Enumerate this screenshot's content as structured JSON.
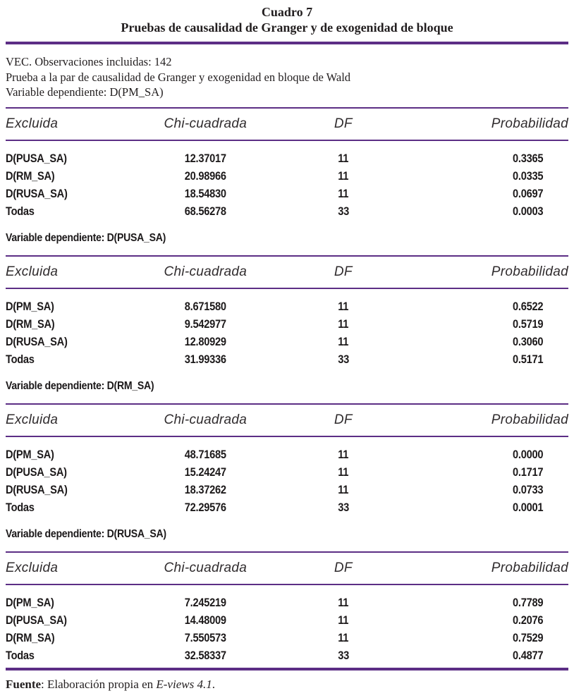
{
  "page": {
    "title_line1": "Cuadro 7",
    "title_line2": "Pruebas de causalidad de Granger y de exogenidad de bloque"
  },
  "intro": {
    "observations": "VEC. Observaciones incluidas: 142",
    "test_description": "Prueba a la par de causalidad de Granger y exogenidad en bloque de Wald"
  },
  "columns": {
    "excluded": "Excluida",
    "chi_squared": "Chi-cuadrada",
    "df": "DF",
    "probability": "Probabilidad"
  },
  "tables": [
    {
      "dependent_variable": "Variable dependiente: D(PM_SA)",
      "rows": [
        [
          "D(PUSA_SA)",
          "12.37017",
          "11",
          "0.3365"
        ],
        [
          "D(RM_SA)",
          "20.98966",
          "11",
          "0.0335"
        ],
        [
          "D(RUSA_SA)",
          "18.54830",
          "11",
          "0.0697"
        ],
        [
          "Todas",
          "68.56278",
          "33",
          "0.0003"
        ]
      ]
    },
    {
      "dependent_variable": "Variable dependiente: D(PUSA_SA)",
      "rows": [
        [
          "D(PM_SA)",
          "8.671580",
          "11",
          "0.6522"
        ],
        [
          "D(RM_SA)",
          "9.542977",
          "11",
          "0.5719"
        ],
        [
          "D(RUSA_SA)",
          "12.80929",
          "11",
          "0.3060"
        ],
        [
          "Todas",
          "31.99336",
          "33",
          "0.5171"
        ]
      ]
    },
    {
      "dependent_variable": "Variable dependiente: D(RM_SA)",
      "rows": [
        [
          "D(PM_SA)",
          "48.71685",
          "11",
          "0.0000"
        ],
        [
          "D(PUSA_SA)",
          "15.24247",
          "11",
          "0.1717"
        ],
        [
          "D(RUSA_SA)",
          "18.37262",
          "11",
          "0.0733"
        ],
        [
          "Todas",
          "72.29576",
          "33",
          "0.0001"
        ]
      ]
    },
    {
      "dependent_variable": "Variable dependiente: D(RUSA_SA)",
      "rows": [
        [
          "D(PM_SA)",
          "7.245219",
          "11",
          "0.7789"
        ],
        [
          "D(PUSA_SA)",
          "14.48009",
          "11",
          "0.2076"
        ],
        [
          "D(RM_SA)",
          "7.550573",
          "11",
          "0.7529"
        ],
        [
          "Todas",
          "32.58337",
          "33",
          "0.4877"
        ]
      ]
    }
  ],
  "footer": {
    "source_label": "Fuente",
    "source_text": ": Elaboración propia en ",
    "source_software": "E-views 4.1",
    "source_period": "."
  },
  "colors": {
    "rule_purple": "#5c2e85",
    "text": "#221e1f"
  }
}
